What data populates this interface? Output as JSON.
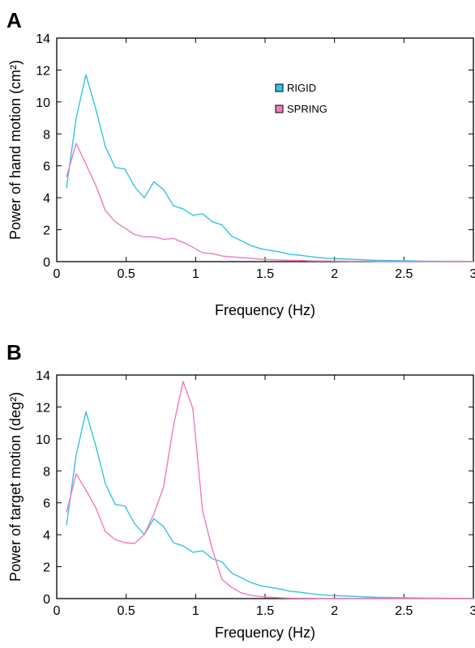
{
  "chart_data": [
    {
      "panel_label": "A",
      "type": "line",
      "xlabel": "Frequency (Hz)",
      "ylabel": "Power of hand motion (cm²)",
      "xlim": [
        0,
        3
      ],
      "ylim": [
        0,
        14
      ],
      "xticks": [
        "0",
        "0.5",
        "1",
        "1.5",
        "2",
        "2.5",
        "3"
      ],
      "yticks": [
        "0",
        "2",
        "4",
        "6",
        "8",
        "10",
        "12",
        "14"
      ],
      "legend": {
        "position": "upper-middle",
        "entries": [
          "RIGID",
          "SPRING"
        ]
      },
      "series": [
        {
          "name": "RIGID",
          "color": "#33c3e6",
          "x": [
            0.07,
            0.14,
            0.21,
            0.28,
            0.35,
            0.42,
            0.49,
            0.56,
            0.63,
            0.7,
            0.77,
            0.84,
            0.91,
            0.98,
            1.05,
            1.12,
            1.19,
            1.26,
            1.33,
            1.4,
            1.47,
            1.54,
            1.61,
            1.68,
            1.75,
            1.82,
            1.89,
            1.96,
            2.03,
            2.1,
            2.17,
            2.24,
            2.31,
            2.38,
            2.45,
            2.52,
            2.59,
            2.66,
            2.73,
            2.8,
            2.87,
            2.94,
            3.0
          ],
          "y": [
            4.6,
            9.0,
            11.7,
            9.6,
            7.2,
            5.9,
            5.8,
            4.7,
            4.0,
            5.0,
            4.5,
            3.5,
            3.3,
            2.9,
            3.0,
            2.5,
            2.3,
            1.6,
            1.3,
            1.0,
            0.8,
            0.7,
            0.6,
            0.45,
            0.4,
            0.32,
            0.25,
            0.2,
            0.18,
            0.15,
            0.13,
            0.1,
            0.08,
            0.07,
            0.06,
            0.05,
            0.04,
            0.03,
            0.03,
            0.02,
            0.02,
            0.02,
            0.01
          ]
        },
        {
          "name": "SPRING",
          "color": "#f07bbf",
          "x": [
            0.07,
            0.14,
            0.21,
            0.28,
            0.35,
            0.42,
            0.49,
            0.56,
            0.63,
            0.7,
            0.77,
            0.84,
            0.91,
            0.98,
            1.05,
            1.12,
            1.19,
            1.26,
            1.33,
            1.4,
            1.47,
            1.54,
            1.61,
            1.68,
            1.75,
            1.82,
            1.89,
            1.96,
            2.03,
            2.1,
            2.17,
            2.24,
            2.31,
            2.38,
            2.45,
            2.52,
            2.59,
            2.66,
            2.73,
            2.8,
            2.87,
            2.94,
            3.0
          ],
          "y": [
            5.3,
            7.4,
            6.1,
            4.8,
            3.2,
            2.5,
            2.1,
            1.7,
            1.55,
            1.55,
            1.4,
            1.45,
            1.2,
            0.9,
            0.55,
            0.5,
            0.35,
            0.3,
            0.25,
            0.2,
            0.15,
            0.12,
            0.1,
            0.08,
            0.07,
            0.05,
            0.04,
            0.04,
            0.03,
            0.02,
            0.02,
            0.02,
            0.01,
            0.01,
            0.01,
            0.01,
            0.01,
            0.01,
            0.01,
            0.01,
            0.01,
            0.01,
            0.01
          ]
        }
      ]
    },
    {
      "panel_label": "B",
      "type": "line",
      "xlabel": "Frequency (Hz)",
      "ylabel": "Power of target motion (deg²)",
      "xlim": [
        0,
        3
      ],
      "ylim": [
        0,
        14
      ],
      "xticks": [
        "0",
        "0.5",
        "1",
        "1.5",
        "2",
        "2.5",
        "3"
      ],
      "yticks": [
        "0",
        "2",
        "4",
        "6",
        "8",
        "10",
        "12",
        "14"
      ],
      "series": [
        {
          "name": "RIGID",
          "color": "#33c3e6",
          "x": [
            0.07,
            0.14,
            0.21,
            0.28,
            0.35,
            0.42,
            0.49,
            0.56,
            0.63,
            0.7,
            0.77,
            0.84,
            0.91,
            0.98,
            1.05,
            1.12,
            1.19,
            1.26,
            1.33,
            1.4,
            1.47,
            1.54,
            1.61,
            1.68,
            1.75,
            1.82,
            1.89,
            1.96,
            2.03,
            2.1,
            2.17,
            2.24,
            2.31,
            2.38,
            2.45,
            2.52,
            2.59,
            2.66,
            2.73,
            2.8,
            2.87,
            2.94,
            3.0
          ],
          "y": [
            4.6,
            9.0,
            11.7,
            9.6,
            7.2,
            5.9,
            5.8,
            4.7,
            4.0,
            5.0,
            4.5,
            3.5,
            3.3,
            2.9,
            3.0,
            2.5,
            2.3,
            1.6,
            1.3,
            1.0,
            0.8,
            0.7,
            0.6,
            0.45,
            0.4,
            0.32,
            0.25,
            0.2,
            0.18,
            0.15,
            0.13,
            0.1,
            0.08,
            0.07,
            0.06,
            0.05,
            0.04,
            0.03,
            0.03,
            0.02,
            0.02,
            0.02,
            0.01
          ]
        },
        {
          "name": "SPRING",
          "color": "#f07bbf",
          "x": [
            0.07,
            0.14,
            0.21,
            0.28,
            0.35,
            0.42,
            0.49,
            0.56,
            0.63,
            0.7,
            0.77,
            0.84,
            0.91,
            0.98,
            1.05,
            1.12,
            1.19,
            1.26,
            1.33,
            1.4,
            1.47,
            1.54,
            1.61,
            1.68,
            1.75,
            1.82,
            1.89,
            1.96,
            2.03,
            2.1,
            2.17,
            2.24,
            2.31,
            2.38,
            2.45,
            2.52,
            2.59,
            2.66,
            2.73,
            2.8,
            2.87,
            2.94,
            3.0
          ],
          "y": [
            5.4,
            7.8,
            6.8,
            5.7,
            4.2,
            3.7,
            3.5,
            3.45,
            4.0,
            5.3,
            7.0,
            10.8,
            13.6,
            11.9,
            5.5,
            3.1,
            1.2,
            0.7,
            0.35,
            0.2,
            0.12,
            0.08,
            0.05,
            0.03,
            0.02,
            0.02,
            0.01,
            0.01,
            0.01,
            0.01,
            0.01,
            0.01,
            0.01,
            0.01,
            0.01,
            0.01,
            0.01,
            0.01,
            0.01,
            0.01,
            0.01,
            0.01,
            0.01
          ]
        }
      ]
    }
  ]
}
